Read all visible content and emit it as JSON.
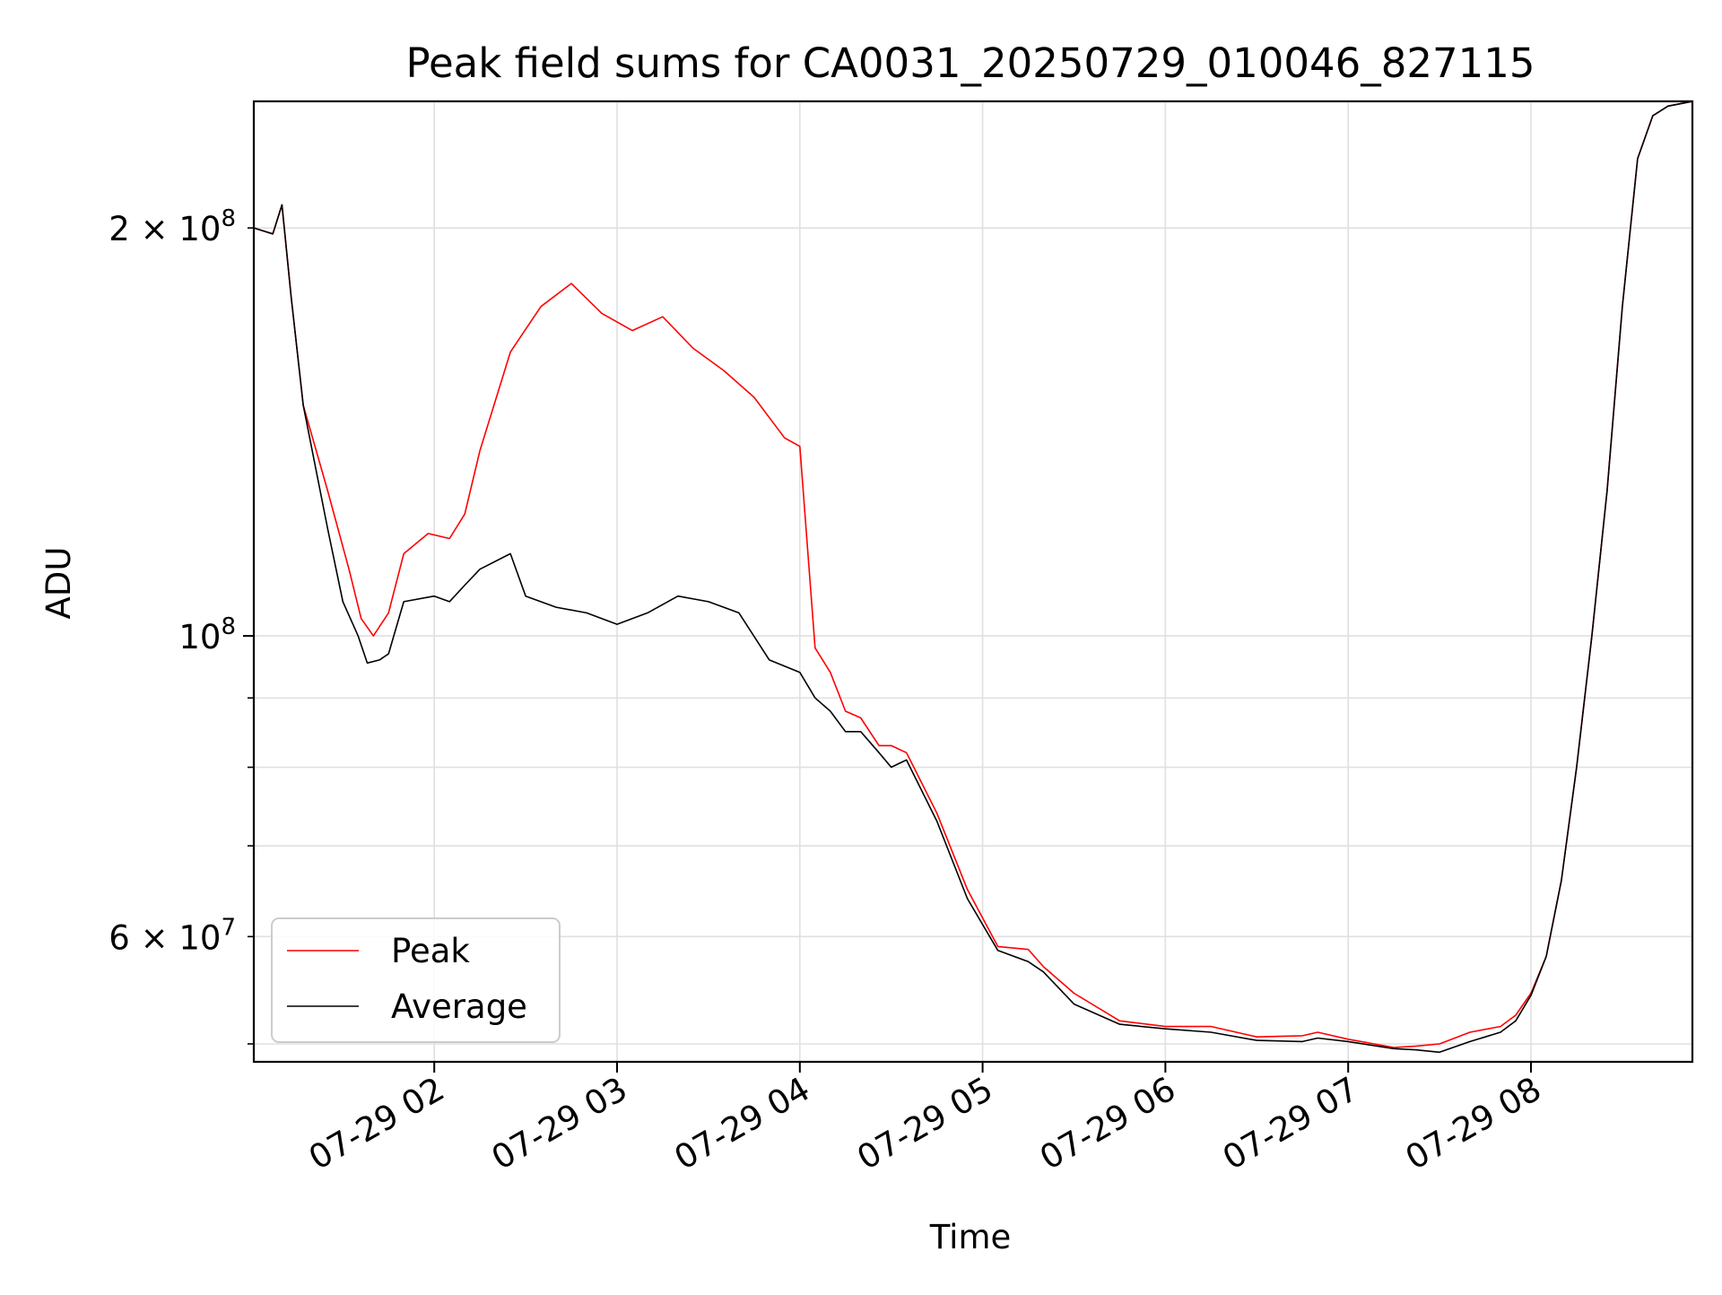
{
  "chart_data": {
    "type": "line",
    "title": "Peak field sums for CA0031_20250729_010046_827115",
    "xlabel": "Time",
    "ylabel": "ADU",
    "yscale": "log",
    "ylim": [
      48500000,
      248000000
    ],
    "xlim": [
      "2025-07-29T01:00:46",
      "2025-07-29T08:53:00"
    ],
    "x_ticks": [
      {
        "t": "2025-07-29T02:00:00",
        "label": "07-29 02"
      },
      {
        "t": "2025-07-29T03:00:00",
        "label": "07-29 03"
      },
      {
        "t": "2025-07-29T04:00:00",
        "label": "07-29 04"
      },
      {
        "t": "2025-07-29T05:00:00",
        "label": "07-29 05"
      },
      {
        "t": "2025-07-29T06:00:00",
        "label": "07-29 06"
      },
      {
        "t": "2025-07-29T07:00:00",
        "label": "07-29 07"
      },
      {
        "t": "2025-07-29T08:00:00",
        "label": "07-29 08"
      }
    ],
    "y_major_ticks": [
      {
        "value": 100000000,
        "label": "10",
        "sup": "8"
      }
    ],
    "y_minor_ticks": [
      {
        "value": 60000000,
        "mant": "6",
        "exp": "7"
      },
      {
        "value": 200000000,
        "mant": "2",
        "exp": "8"
      }
    ],
    "y_minor_unlabeled": [
      50000000,
      70000000,
      80000000,
      90000000
    ],
    "times_sign": "×",
    "grid": true,
    "legend_position": "lower-left",
    "colors": {
      "peak": "#ff0000",
      "average": "#000000",
      "grid": "#e0e0e0"
    },
    "series": [
      {
        "name": "Peak",
        "color": "#ff0000",
        "x": [
          "2025-07-29T01:00:46",
          "2025-07-29T01:07:00",
          "2025-07-29T01:10:00",
          "2025-07-29T01:13:00",
          "2025-07-29T01:17:00",
          "2025-07-29T01:25:00",
          "2025-07-29T01:32:00",
          "2025-07-29T01:36:00",
          "2025-07-29T01:40:00",
          "2025-07-29T01:45:00",
          "2025-07-29T01:50:00",
          "2025-07-29T01:58:00",
          "2025-07-29T02:05:00",
          "2025-07-29T02:10:00",
          "2025-07-29T02:15:00",
          "2025-07-29T02:25:00",
          "2025-07-29T02:35:00",
          "2025-07-29T02:45:00",
          "2025-07-29T02:55:00",
          "2025-07-29T03:05:00",
          "2025-07-29T03:15:00",
          "2025-07-29T03:25:00",
          "2025-07-29T03:35:00",
          "2025-07-29T03:45:00",
          "2025-07-29T03:55:00",
          "2025-07-29T04:00:00",
          "2025-07-29T04:05:00",
          "2025-07-29T04:10:00",
          "2025-07-29T04:15:00",
          "2025-07-29T04:20:00",
          "2025-07-29T04:26:00",
          "2025-07-29T04:30:00",
          "2025-07-29T04:35:00",
          "2025-07-29T04:45:00",
          "2025-07-29T04:55:00",
          "2025-07-29T05:05:00",
          "2025-07-29T05:15:00",
          "2025-07-29T05:20:00",
          "2025-07-29T05:30:00",
          "2025-07-29T05:45:00",
          "2025-07-29T06:00:00",
          "2025-07-29T06:15:00",
          "2025-07-29T06:30:00",
          "2025-07-29T06:45:00",
          "2025-07-29T06:50:00",
          "2025-07-29T07:00:00",
          "2025-07-29T07:15:00",
          "2025-07-29T07:22:00",
          "2025-07-29T07:30:00",
          "2025-07-29T07:40:00",
          "2025-07-29T07:50:00",
          "2025-07-29T07:55:00",
          "2025-07-29T08:00:00",
          "2025-07-29T08:05:00",
          "2025-07-29T08:10:00",
          "2025-07-29T08:15:00",
          "2025-07-29T08:20:00",
          "2025-07-29T08:25:00",
          "2025-07-29T08:30:00",
          "2025-07-29T08:35:00",
          "2025-07-29T08:40:00",
          "2025-07-29T08:45:00",
          "2025-07-29T08:53:00"
        ],
        "y": [
          200000000,
          198000000,
          208000000,
          178000000,
          148000000,
          128000000,
          112000000,
          103000000,
          100000000,
          104000000,
          115000000,
          119000000,
          118000000,
          123000000,
          137000000,
          162000000,
          175000000,
          182000000,
          173000000,
          168000000,
          172000000,
          163000000,
          157000000,
          150000000,
          140000000,
          138000000,
          98000000,
          94000000,
          88000000,
          87000000,
          83000000,
          83000000,
          82000000,
          74000000,
          65000000,
          59000000,
          58700000,
          57000000,
          54500000,
          52000000,
          51500000,
          51500000,
          50600000,
          50700000,
          51000000,
          50400000,
          49700000,
          49800000,
          50000000,
          51000000,
          51500000,
          52500000,
          54500000,
          58000000,
          66000000,
          80000000,
          100000000,
          128000000,
          175000000,
          225000000,
          242000000,
          246000000,
          248000000
        ]
      },
      {
        "name": "Average",
        "color": "#000000",
        "x": [
          "2025-07-29T01:00:46",
          "2025-07-29T01:07:00",
          "2025-07-29T01:10:00",
          "2025-07-29T01:13:00",
          "2025-07-29T01:17:00",
          "2025-07-29T01:25:00",
          "2025-07-29T01:30:00",
          "2025-07-29T01:35:00",
          "2025-07-29T01:38:00",
          "2025-07-29T01:42:00",
          "2025-07-29T01:45:00",
          "2025-07-29T01:50:00",
          "2025-07-29T02:00:00",
          "2025-07-29T02:05:00",
          "2025-07-29T02:10:00",
          "2025-07-29T02:15:00",
          "2025-07-29T02:25:00",
          "2025-07-29T02:30:00",
          "2025-07-29T02:40:00",
          "2025-07-29T02:50:00",
          "2025-07-29T03:00:00",
          "2025-07-29T03:10:00",
          "2025-07-29T03:20:00",
          "2025-07-29T03:30:00",
          "2025-07-29T03:40:00",
          "2025-07-29T03:50:00",
          "2025-07-29T04:00:00",
          "2025-07-29T04:05:00",
          "2025-07-29T04:10:00",
          "2025-07-29T04:15:00",
          "2025-07-29T04:20:00",
          "2025-07-29T04:26:00",
          "2025-07-29T04:30:00",
          "2025-07-29T04:35:00",
          "2025-07-29T04:45:00",
          "2025-07-29T04:55:00",
          "2025-07-29T05:05:00",
          "2025-07-29T05:15:00",
          "2025-07-29T05:20:00",
          "2025-07-29T05:30:00",
          "2025-07-29T05:45:00",
          "2025-07-29T06:00:00",
          "2025-07-29T06:15:00",
          "2025-07-29T06:30:00",
          "2025-07-29T06:45:00",
          "2025-07-29T06:50:00",
          "2025-07-29T07:00:00",
          "2025-07-29T07:15:00",
          "2025-07-29T07:22:00",
          "2025-07-29T07:30:00",
          "2025-07-29T07:40:00",
          "2025-07-29T07:50:00",
          "2025-07-29T07:55:00",
          "2025-07-29T08:00:00",
          "2025-07-29T08:05:00",
          "2025-07-29T08:10:00",
          "2025-07-29T08:15:00",
          "2025-07-29T08:20:00",
          "2025-07-29T08:25:00",
          "2025-07-29T08:30:00",
          "2025-07-29T08:35:00",
          "2025-07-29T08:40:00",
          "2025-07-29T08:45:00",
          "2025-07-29T08:53:00"
        ],
        "y": [
          200000000,
          198000000,
          208000000,
          178000000,
          148000000,
          120000000,
          106000000,
          100000000,
          95500000,
          96000000,
          97000000,
          106000000,
          107000000,
          106000000,
          109000000,
          112000000,
          115000000,
          107000000,
          105000000,
          104000000,
          102000000,
          104000000,
          107000000,
          106000000,
          104000000,
          96000000,
          94000000,
          90000000,
          88000000,
          85000000,
          85000000,
          82000000,
          80000000,
          81000000,
          73000000,
          64000000,
          58600000,
          57500000,
          56500000,
          53500000,
          51700000,
          51300000,
          51000000,
          50300000,
          50200000,
          50500000,
          50200000,
          49600000,
          49500000,
          49300000,
          50200000,
          51000000,
          52000000,
          54300000,
          58000000,
          66000000,
          80000000,
          100000000,
          128000000,
          175000000,
          225000000,
          242000000,
          246000000,
          248000000
        ]
      }
    ]
  }
}
